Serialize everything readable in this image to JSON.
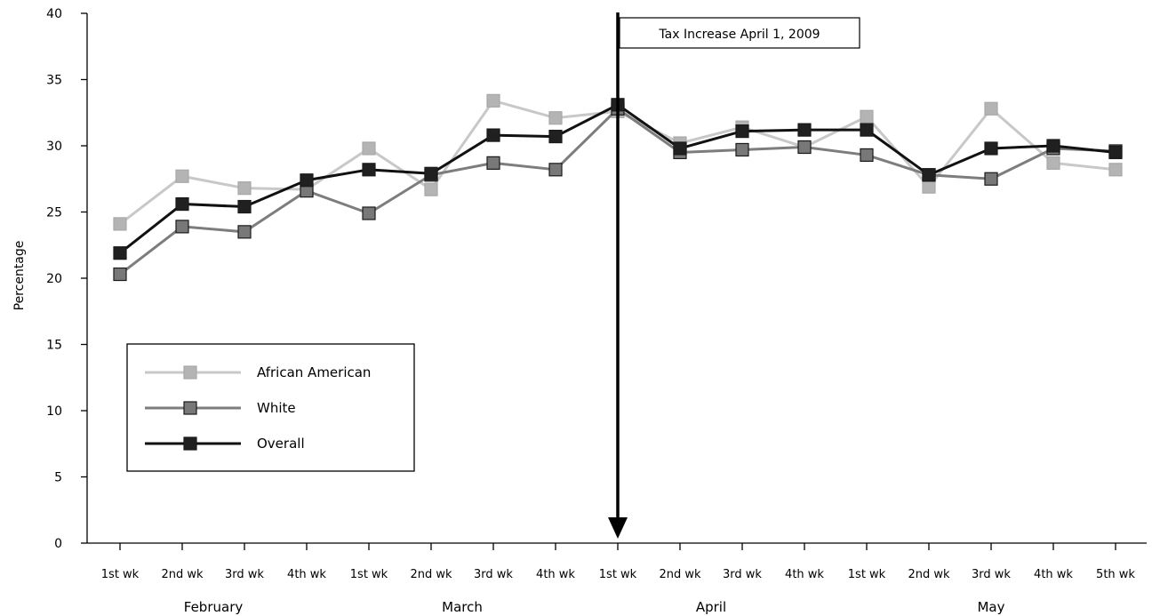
{
  "chart_data": {
    "type": "line",
    "title": "",
    "ylabel": "Percentage",
    "xlabel": "",
    "ylim": [
      0,
      40
    ],
    "yticks": [
      0,
      5,
      10,
      15,
      20,
      25,
      30,
      35,
      40
    ],
    "categories": [
      "1st wk",
      "2nd wk",
      "3rd wk",
      "4th wk",
      "1st wk",
      "2nd wk",
      "3rd wk",
      "4th wk",
      "1st wk",
      "2nd wk",
      "3rd wk",
      "4th wk",
      "1st wk",
      "2nd wk",
      "3rd wk",
      "4th wk",
      "5th wk"
    ],
    "month_groups": [
      {
        "label": "February",
        "start": 0,
        "end": 3
      },
      {
        "label": "March",
        "start": 4,
        "end": 7
      },
      {
        "label": "April",
        "start": 8,
        "end": 11
      },
      {
        "label": "May",
        "start": 12,
        "end": 16
      }
    ],
    "series": [
      {
        "name": "African American",
        "color": "#c8c8c8",
        "marker_fill": "#b4b4b4",
        "values": [
          24.1,
          27.7,
          26.8,
          26.7,
          29.8,
          26.7,
          33.4,
          32.1,
          32.6,
          30.2,
          31.4,
          29.9,
          32.2,
          26.9,
          32.8,
          28.7,
          28.2
        ]
      },
      {
        "name": "White",
        "color": "#7d7d7d",
        "marker_fill": "#787878",
        "values": [
          20.3,
          23.9,
          23.5,
          26.6,
          24.9,
          27.8,
          28.7,
          28.2,
          32.8,
          29.5,
          29.7,
          29.9,
          29.3,
          27.8,
          27.5,
          29.8,
          29.6
        ]
      },
      {
        "name": "Overall",
        "color": "#111111",
        "marker_fill": "#202020",
        "values": [
          21.9,
          25.6,
          25.4,
          27.4,
          28.2,
          27.9,
          30.8,
          30.7,
          33.1,
          29.8,
          31.1,
          31.2,
          31.2,
          27.8,
          29.8,
          30.0,
          29.5
        ]
      }
    ],
    "annotation": {
      "text": "Tax Increase April 1, 2009",
      "category_index": 8
    },
    "legend_position": "lower-left",
    "grid": false
  }
}
